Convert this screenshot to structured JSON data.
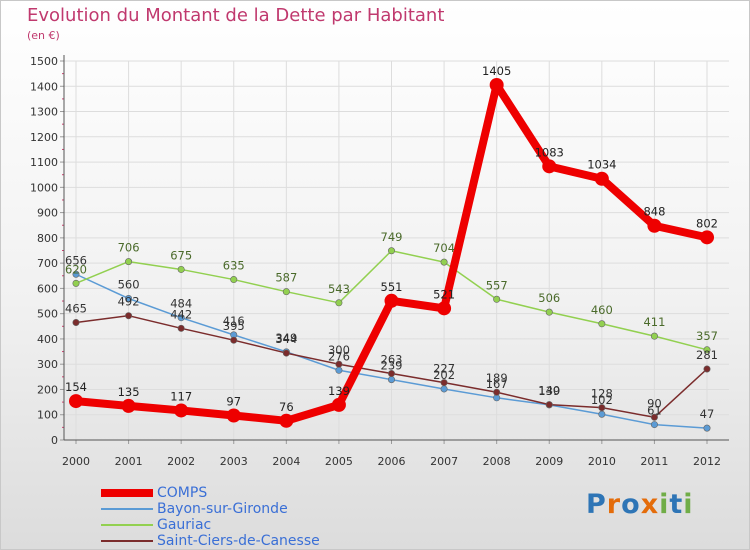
{
  "title": "Evolution du Montant de la Dette par Habitant",
  "subtitle": "(en €)",
  "logo_text": "Proxiti",
  "chart_data": {
    "type": "line",
    "x": [
      "2000",
      "2001",
      "2002",
      "2003",
      "2004",
      "2005",
      "2006",
      "2007",
      "2008",
      "2009",
      "2010",
      "2011",
      "2012"
    ],
    "ylim": [
      0,
      1500
    ],
    "yticks": [
      0,
      100,
      200,
      300,
      400,
      500,
      600,
      700,
      800,
      900,
      1000,
      1100,
      1200,
      1300,
      1400,
      1500
    ],
    "grid": true,
    "legend_position": "bottom-left",
    "series": [
      {
        "name": "COMPS",
        "color": "#ee0000",
        "values": [
          154,
          135,
          117,
          97,
          76,
          139,
          551,
          521,
          1405,
          1083,
          1034,
          848,
          802
        ]
      },
      {
        "name": "Bayon-sur-Gironde",
        "color": "#5b9bd5",
        "values": [
          656,
          560,
          484,
          416,
          349,
          276,
          239,
          202,
          167,
          139,
          102,
          61,
          47
        ]
      },
      {
        "name": "Gauriac",
        "color": "#92d050",
        "values": [
          620,
          706,
          675,
          635,
          587,
          543,
          749,
          704,
          557,
          506,
          460,
          411,
          357
        ]
      },
      {
        "name": "Saint-Ciers-de-Canesse",
        "color": "#7b2c2c",
        "values": [
          465,
          492,
          442,
          395,
          344,
          300,
          263,
          227,
          189,
          140,
          128,
          90,
          281
        ]
      }
    ]
  }
}
